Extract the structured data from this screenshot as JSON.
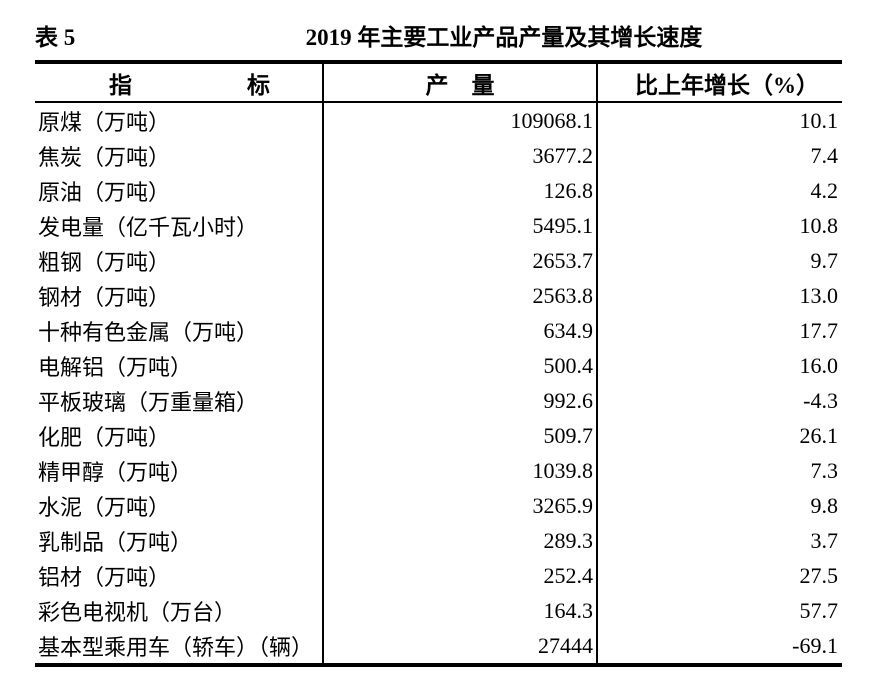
{
  "caption": {
    "table_label": "表 5",
    "title": "2019 年主要工业产品产量及其增长速度"
  },
  "table": {
    "headers": {
      "indicator": "指　　　　　标",
      "output": "产　量",
      "growth": "比上年增长（%）"
    },
    "rows": [
      {
        "indicator": "原煤（万吨）",
        "output": "109068.1",
        "growth": "10.1"
      },
      {
        "indicator": "焦炭（万吨）",
        "output": "3677.2",
        "growth": "7.4"
      },
      {
        "indicator": "原油（万吨）",
        "output": "126.8",
        "growth": "4.2"
      },
      {
        "indicator": "发电量（亿千瓦小时）",
        "output": "5495.1",
        "growth": "10.8"
      },
      {
        "indicator": "粗钢（万吨）",
        "output": "2653.7",
        "growth": "9.7"
      },
      {
        "indicator": "钢材（万吨）",
        "output": "2563.8",
        "growth": "13.0"
      },
      {
        "indicator": "十种有色金属（万吨）",
        "output": "634.9",
        "growth": "17.7"
      },
      {
        "indicator": "电解铝（万吨）",
        "output": "500.4",
        "growth": "16.0"
      },
      {
        "indicator": "平板玻璃（万重量箱）",
        "output": "992.6",
        "growth": "-4.3"
      },
      {
        "indicator": "化肥（万吨）",
        "output": "509.7",
        "growth": "26.1"
      },
      {
        "indicator": "精甲醇（万吨）",
        "output": "1039.8",
        "growth": "7.3"
      },
      {
        "indicator": "水泥（万吨）",
        "output": "3265.9",
        "growth": "9.8"
      },
      {
        "indicator": "乳制品（万吨）",
        "output": "289.3",
        "growth": "3.7"
      },
      {
        "indicator": "铝材（万吨）",
        "output": "252.4",
        "growth": "27.5"
      },
      {
        "indicator": "彩色电视机（万台）",
        "output": "164.3",
        "growth": "57.7"
      },
      {
        "indicator": "基本型乘用车（轿车）（辆）",
        "output": "27444",
        "growth": "-69.1"
      }
    ]
  },
  "colors": {
    "text": "#000000",
    "background": "#ffffff",
    "rule": "#000000"
  }
}
